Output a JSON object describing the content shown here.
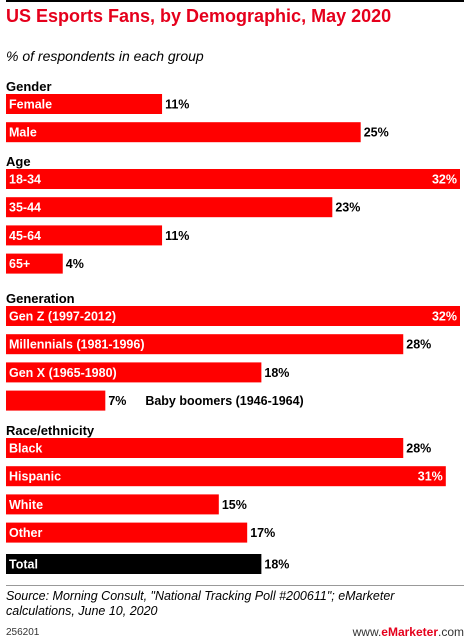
{
  "header": {
    "title": "US Esports Fans, by Demographic, May 2020",
    "subtitle": "% of respondents in each group"
  },
  "chart_data": {
    "type": "bar",
    "orientation": "horizontal",
    "xlim": [
      0,
      32
    ],
    "value_suffix": "%",
    "colors": {
      "bar": "#ff0000",
      "total": "#000000"
    },
    "groups": [
      {
        "name": "Gender",
        "items": [
          {
            "label": "Female",
            "value": 11
          },
          {
            "label": "Male",
            "value": 25
          }
        ]
      },
      {
        "name": "Age",
        "items": [
          {
            "label": "18-34",
            "value": 32
          },
          {
            "label": "35-44",
            "value": 23
          },
          {
            "label": "45-64",
            "value": 11
          },
          {
            "label": "65+",
            "value": 4
          }
        ]
      },
      {
        "name": "Generation",
        "items": [
          {
            "label": "Gen Z (1997-2012)",
            "value": 32
          },
          {
            "label": "Millennials (1981-1996)",
            "value": 28
          },
          {
            "label": "Gen X (1965-1980)",
            "value": 18
          },
          {
            "label": "Baby boomers (1946-1964)",
            "value": 7
          }
        ]
      },
      {
        "name": "Race/ethnicity",
        "items": [
          {
            "label": "Black",
            "value": 28
          },
          {
            "label": "Hispanic",
            "value": 31
          },
          {
            "label": "White",
            "value": 15
          },
          {
            "label": "Other",
            "value": 17
          }
        ]
      },
      {
        "name": "",
        "items": [
          {
            "label": "Total",
            "value": 18,
            "total": true
          }
        ]
      }
    ]
  },
  "footer": {
    "source": "Source: Morning Consult, \"National Tracking Poll #200611\"; eMarketer calculations, June 10, 2020",
    "chart_id": "256201",
    "logo_prefix": "www.",
    "logo_brand": "eMarketer",
    "logo_suffix": ".com"
  }
}
